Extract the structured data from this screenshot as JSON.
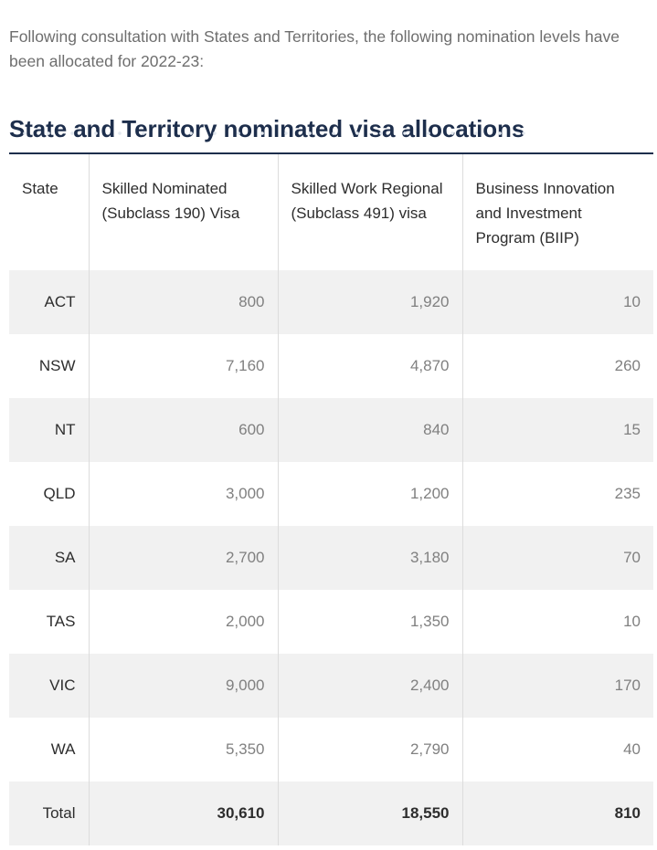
{
  "intro_text": "Following consultation with States and Territories, the following nomination levels have been allocated for 2022-23:",
  "heading": "State and Territory nominated visa allocations",
  "table": {
    "headers": [
      "State",
      "Skilled Nominated (Subclass 190) Visa",
      "Skilled Work Regional (Subclass 491) visa",
      "Business Innovation and Investment Program (BIIP)"
    ],
    "rows": [
      [
        "ACT",
        "800",
        "1,920",
        "10"
      ],
      [
        "NSW",
        "7,160",
        "4,870",
        "260"
      ],
      [
        "NT",
        "600",
        "840",
        "15"
      ],
      [
        "QLD",
        "3,000",
        "1,200",
        "235"
      ],
      [
        "SA",
        "2,700",
        "3,180",
        "70"
      ],
      [
        "TAS",
        "2,000",
        "1,350",
        "10"
      ],
      [
        "VIC",
        "9,000",
        "2,400",
        "170"
      ],
      [
        "WA",
        "5,350",
        "2,790",
        "40"
      ],
      [
        "Total",
        "30,610",
        "18,550",
        "810"
      ]
    ]
  },
  "colors": {
    "heading": "#1d2e4c",
    "row_shade": "#f1f1f1",
    "text_muted": "#808080"
  }
}
